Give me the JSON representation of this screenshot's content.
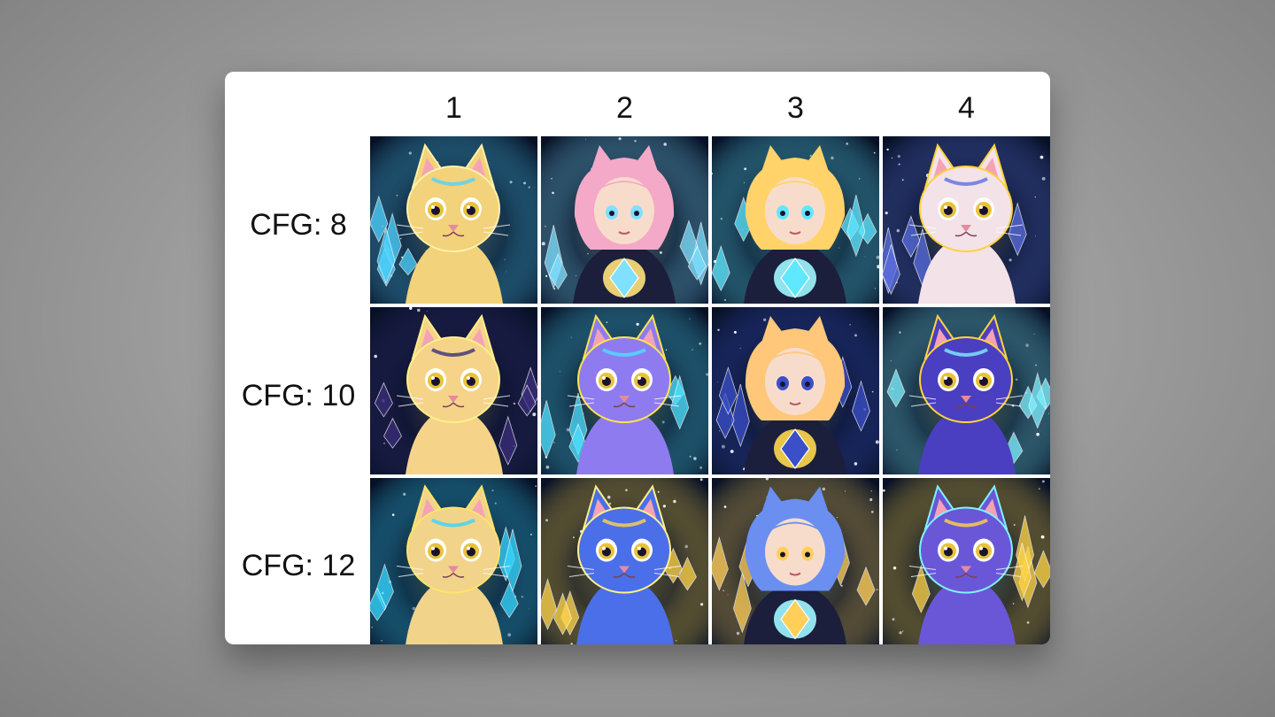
{
  "grid": {
    "columns": [
      "1",
      "2",
      "3",
      "4"
    ],
    "rows": [
      {
        "label": "CFG: 8",
        "tiles": [
          {
            "subject": "cat",
            "fur": "#f2d27a",
            "accent": "#4fd3ff",
            "glow": "#fff2a8"
          },
          {
            "subject": "girl",
            "fur": "#f4a9c8",
            "accent": "#7fe0ff",
            "glow": "#ffe27a"
          },
          {
            "subject": "girl",
            "fur": "#ffd36a",
            "accent": "#5fe8ff",
            "glow": "#9ff7ff"
          },
          {
            "subject": "cat",
            "fur": "#f3e2e8",
            "accent": "#5b6fe0",
            "glow": "#ffd23a"
          }
        ]
      },
      {
        "label": "CFG: 10",
        "tiles": [
          {
            "subject": "cat",
            "fur": "#f5d489",
            "accent": "#3b2e7a",
            "glow": "#fff08a"
          },
          {
            "subject": "cat",
            "fur": "#8f7bf0",
            "accent": "#4ee0ff",
            "glow": "#ffe44a"
          },
          {
            "subject": "girl",
            "fur": "#ffc77a",
            "accent": "#3a4fc8",
            "glow": "#ffd84a"
          },
          {
            "subject": "cat",
            "fur": "#4a3fc0",
            "accent": "#7ef0ff",
            "glow": "#ffd43a"
          }
        ]
      },
      {
        "label": "CFG: 12",
        "tiles": [
          {
            "subject": "cat",
            "fur": "#f2d38a",
            "accent": "#36d6ff",
            "glow": "#ffe46a"
          },
          {
            "subject": "cat",
            "fur": "#4a6fe8",
            "accent": "#ffd54a",
            "glow": "#fff08a"
          },
          {
            "subject": "girl",
            "fur": "#6a8ff0",
            "accent": "#ffcf5a",
            "glow": "#9ff7ff"
          },
          {
            "subject": "cat",
            "fur": "#6a57d8",
            "accent": "#ffd447",
            "glow": "#7ff2ff"
          }
        ]
      }
    ]
  },
  "colors": {
    "card_background": "#ffffff",
    "tile_background": "#071126",
    "text": "#111111"
  }
}
